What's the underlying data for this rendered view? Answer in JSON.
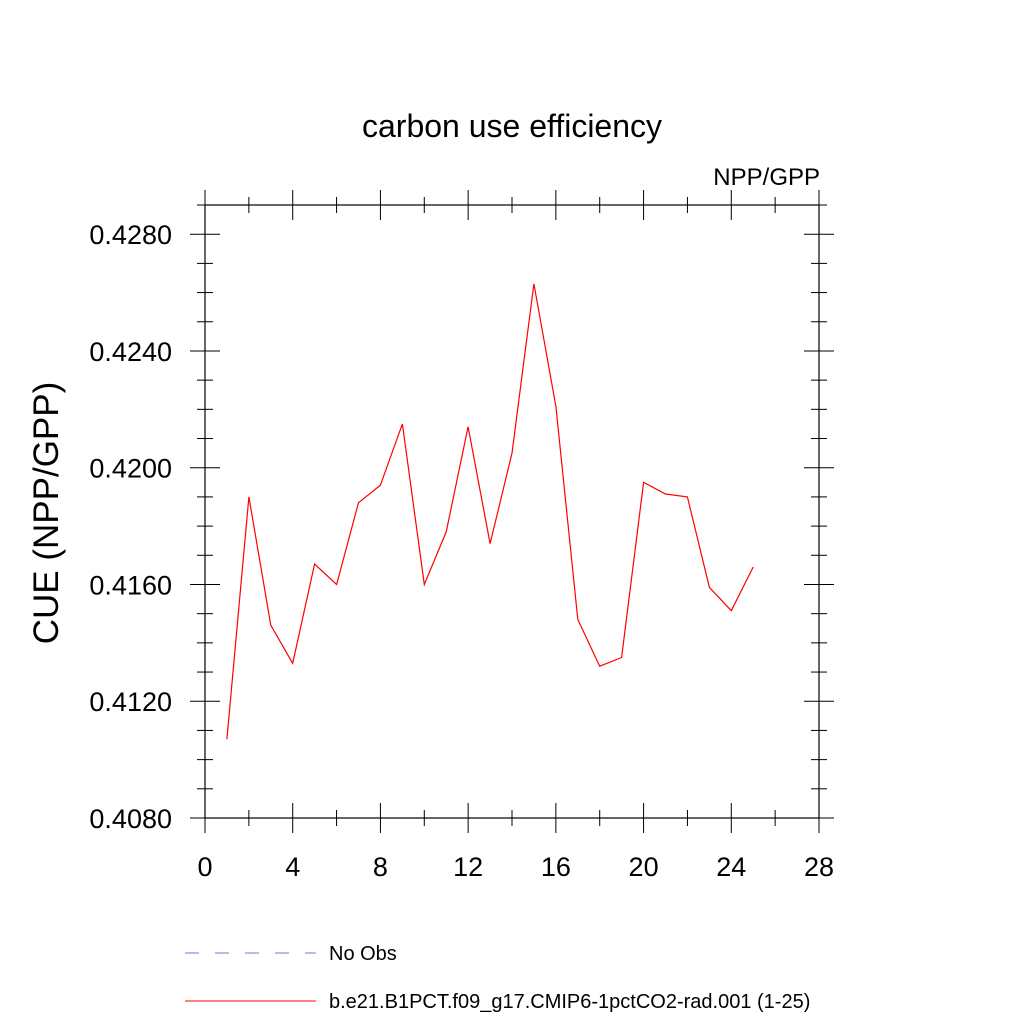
{
  "chart_data": {
    "type": "line",
    "title": "carbon use efficiency",
    "subtitle": "NPP/GPP",
    "xlabel": "",
    "ylabel": "CUE  (NPP/GPP)",
    "xlim": [
      0,
      28
    ],
    "ylim": [
      0.408,
      0.429
    ],
    "x_ticks": [
      "0",
      "4",
      "8",
      "12",
      "16",
      "20",
      "24",
      "28"
    ],
    "y_ticks": [
      "0.4080",
      "0.4120",
      "0.4160",
      "0.4200",
      "0.4240",
      "0.4280"
    ],
    "grid": false,
    "legend_position": "bottom",
    "series": [
      {
        "name": "b.e21.B1PCT.f09_g17.CMIP6-1pctCO2-rad.001 (1-25)",
        "color": "#ff0000",
        "dash": "solid",
        "x": [
          1,
          2,
          3,
          4,
          5,
          6,
          7,
          8,
          9,
          10,
          11,
          12,
          13,
          14,
          15,
          16,
          17,
          18,
          19,
          20,
          21,
          22,
          23,
          24,
          25
        ],
        "values": [
          0.4107,
          0.419,
          0.4146,
          0.4133,
          0.4167,
          0.416,
          0.4188,
          0.4194,
          0.4215,
          0.416,
          0.4178,
          0.4214,
          0.4174,
          0.4205,
          0.4263,
          0.4221,
          0.4148,
          0.4132,
          0.4135,
          0.4195,
          0.4191,
          0.419,
          0.4159,
          0.4151,
          0.4166
        ]
      }
    ],
    "legend": [
      {
        "label": "No Obs",
        "color": "#7777cc",
        "dash": "dashed"
      },
      {
        "label": "b.e21.B1PCT.f09_g17.CMIP6-1pctCO2-rad.001 (1-25)",
        "color": "#ff0000",
        "dash": "solid"
      }
    ]
  }
}
